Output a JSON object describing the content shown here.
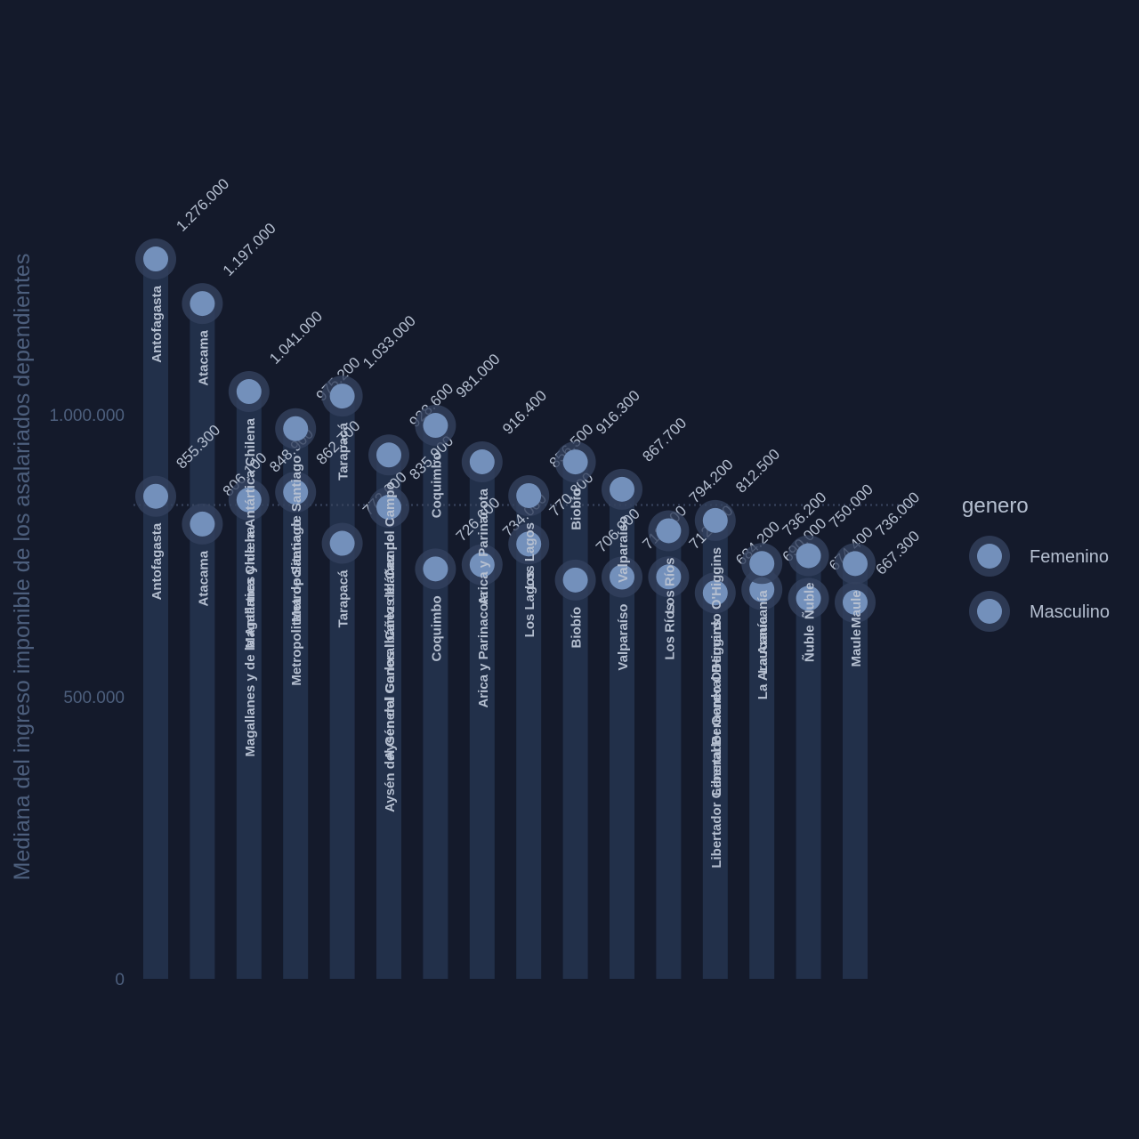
{
  "chart_data": {
    "type": "lollipop",
    "ylabel": "Mediana del ingreso imponible de los asalariados dependientes",
    "ylim": [
      0,
      1300000
    ],
    "yticks": [
      0,
      500000,
      1000000
    ],
    "ytick_labels": [
      "0",
      "500.000",
      "1.000.000"
    ],
    "reference_line": 840000,
    "legend": {
      "title": "genero",
      "position": "right",
      "items": [
        "Femenino",
        "Masculino"
      ]
    },
    "categories": [
      "Antofagasta",
      "Atacama",
      "Magallanes y de la Antártica Chilena",
      "Metropolitana de Santiago",
      "Tarapacá",
      "Aysén del General Carlos Ibáñez del Campo",
      "Coquimbo",
      "Arica y Parinacota",
      "Los Lagos",
      "Biobío",
      "Valparaíso",
      "Los Ríos",
      "Libertador General Bernardo O'Higgins",
      "La Araucanía",
      "Ñuble",
      "Maule"
    ],
    "series": [
      {
        "name": "Femenino",
        "values": [
          855300,
          806100,
          848900,
          862700,
          772000,
          835900,
          726600,
          734000,
          770800,
          706900,
          712100,
          712500,
          684200,
          690000,
          674400,
          667300
        ],
        "labels": [
          "855.300",
          "806.100",
          "848.900",
          "862.700",
          "772.000",
          "835.900",
          "726.600",
          "734.000",
          "770.800",
          "706.900",
          "712.100",
          "712.500",
          "684.200",
          "690.000",
          "674.400",
          "667.300"
        ]
      },
      {
        "name": "Masculino",
        "values": [
          1276000,
          1197000,
          1041000,
          975200,
          1033000,
          928600,
          981000,
          916400,
          856500,
          916300,
          867700,
          794200,
          812500,
          736200,
          750000,
          736000
        ],
        "labels": [
          "1.276.000",
          "1.197.000",
          "1.041.000",
          "975.200",
          "1.033.000",
          "928.600",
          "981.000",
          "916.400",
          "856.500",
          "916.300",
          "867.700",
          "794.200",
          "812.500",
          "736.200",
          "750.000",
          "736.000"
        ]
      }
    ]
  },
  "colors": {
    "background": "#141a2b",
    "bar": "#22304a",
    "point": "#7390bb",
    "halo": "#33415e",
    "text": "#b5bfd0",
    "axis_text": "#4d5f7d",
    "reference": "#3a4660"
  }
}
